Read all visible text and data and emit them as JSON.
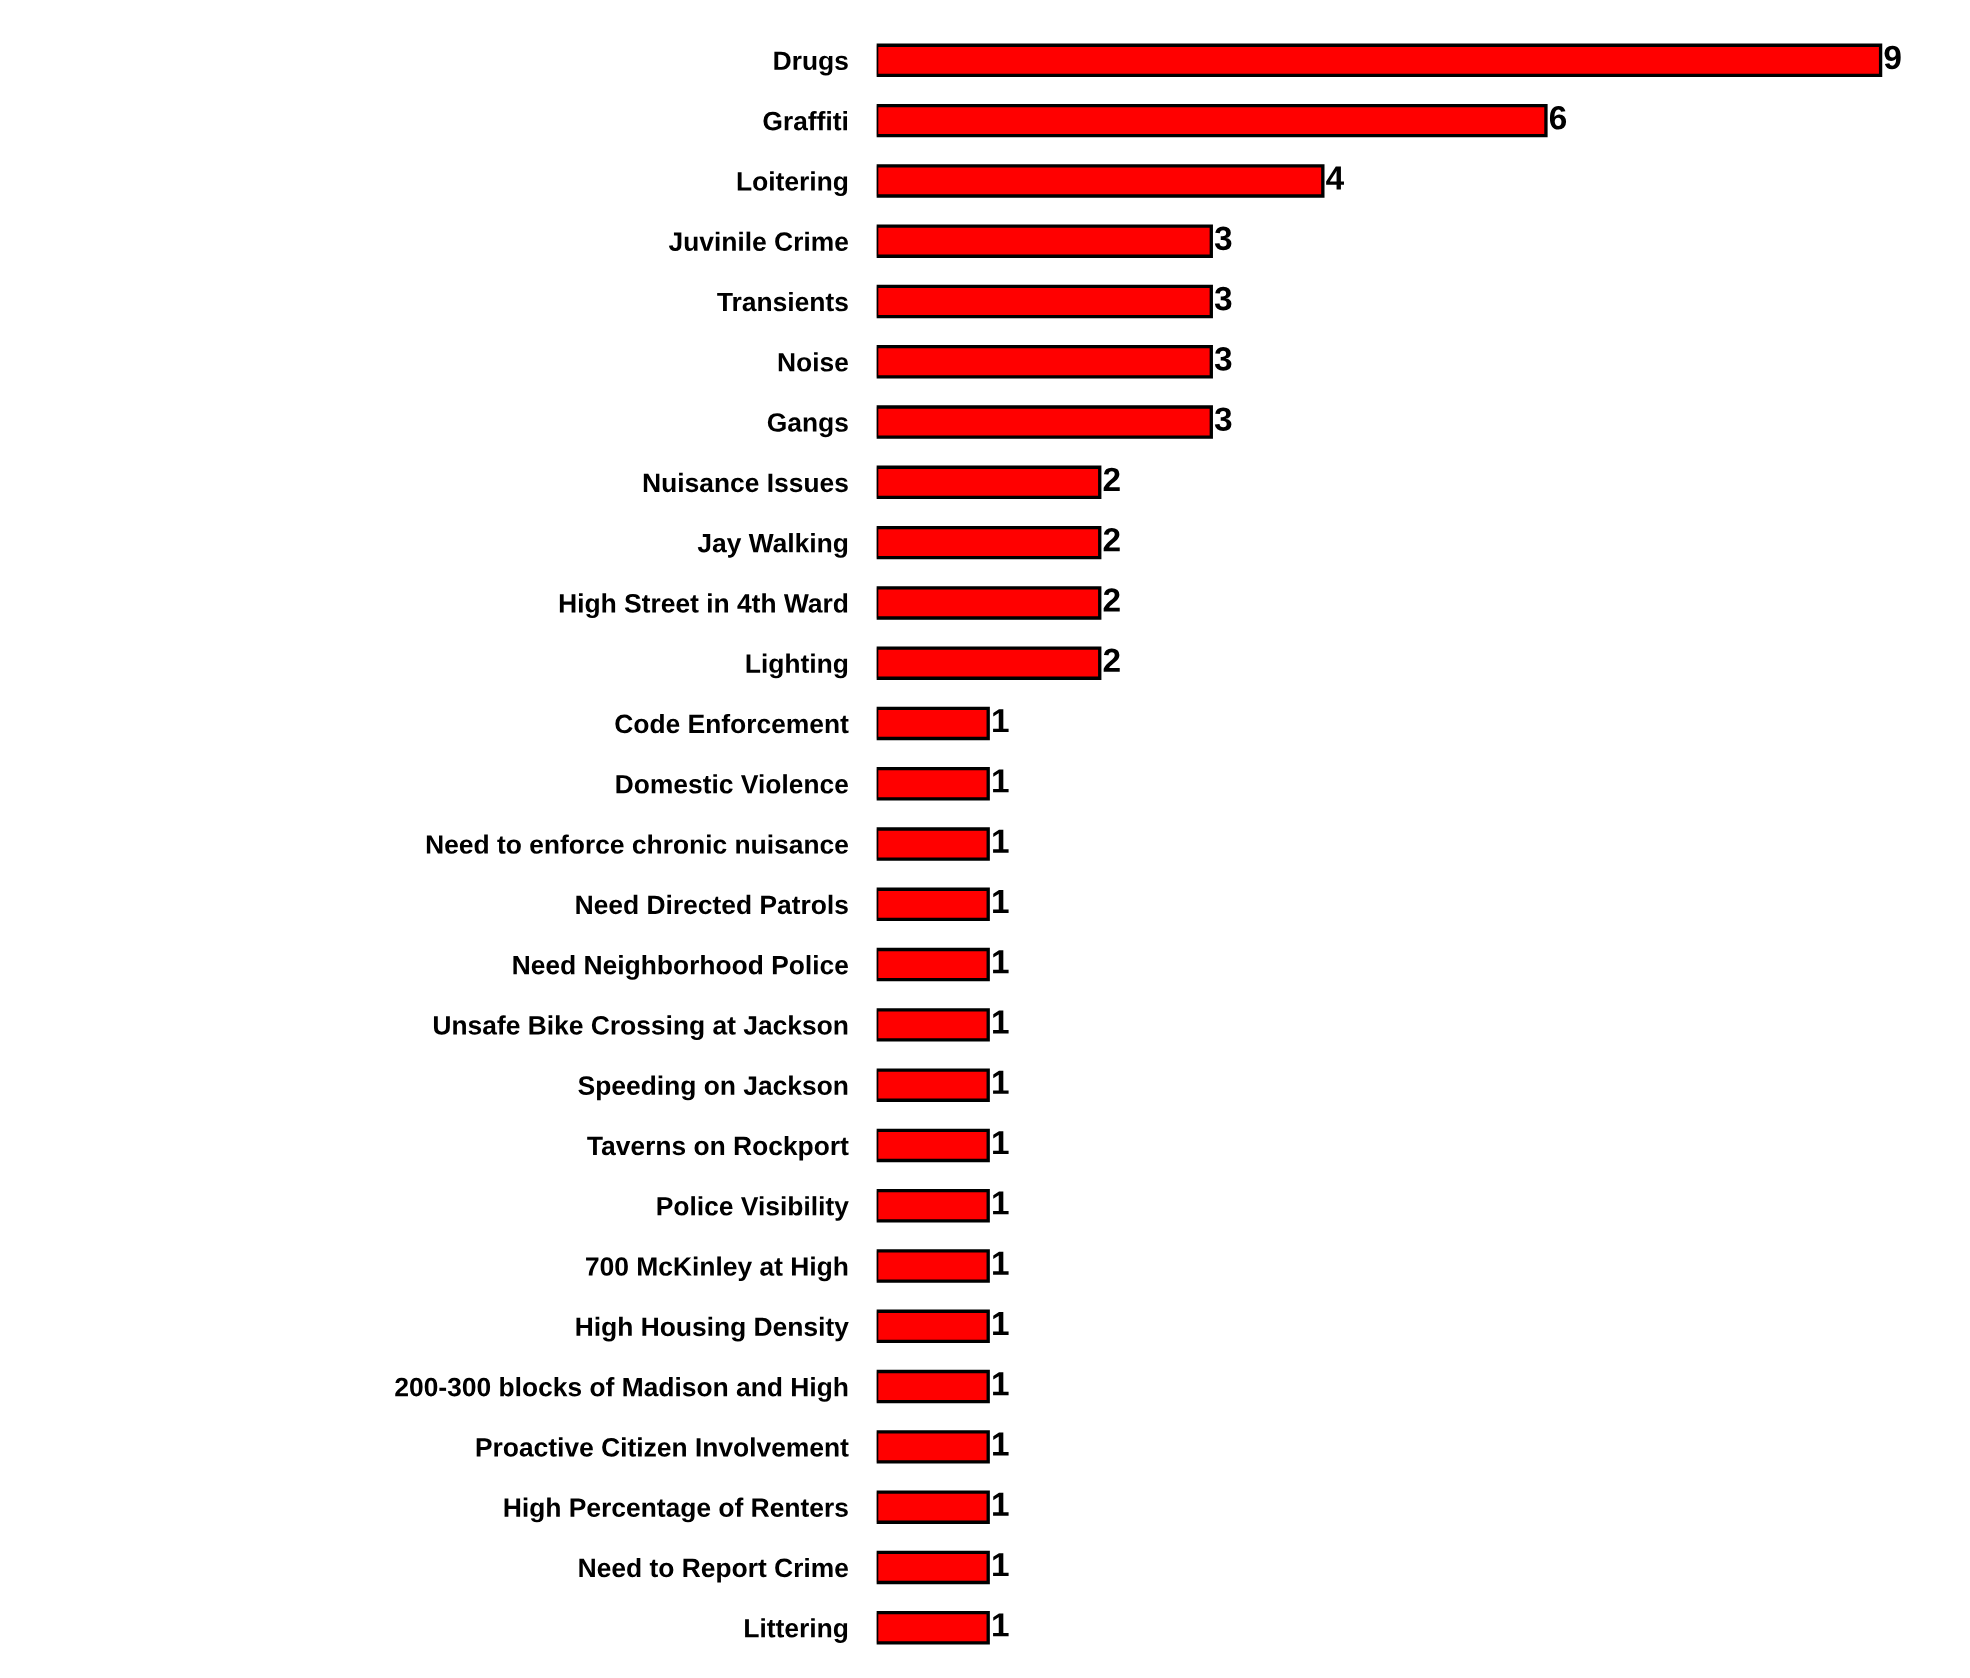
{
  "chart_data": {
    "type": "bar",
    "orientation": "horizontal",
    "categories": [
      "Drugs",
      "Graffiti",
      "Loitering",
      "Juvinile Crime",
      "Transients",
      "Noise",
      "Gangs",
      "Nuisance Issues",
      "Jay Walking",
      "High Street in 4th Ward",
      "Lighting",
      "Code Enforcement",
      "Domestic Violence",
      "Need to enforce chronic nuisance",
      "Need Directed Patrols",
      "Need Neighborhood Police",
      "Unsafe Bike Crossing at Jackson",
      "Speeding on Jackson",
      "Taverns on Rockport",
      "Police Visibility",
      "700 McKinley at High",
      "High Housing Density",
      "200-300 blocks of Madison and High",
      "Proactive Citizen Involvement",
      "High Percentage of Renters",
      "Need to Report Crime",
      "Littering"
    ],
    "values": [
      9,
      6,
      4,
      3,
      3,
      3,
      3,
      2,
      2,
      2,
      2,
      1,
      1,
      1,
      1,
      1,
      1,
      1,
      1,
      1,
      1,
      1,
      1,
      1,
      1,
      1,
      1
    ],
    "color": "#ff0000",
    "data_labels": true,
    "grid": false,
    "legend": false
  }
}
